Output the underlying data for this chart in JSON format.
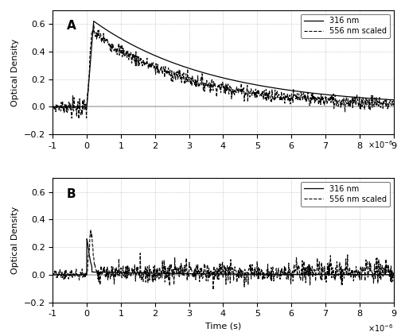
{
  "title": "",
  "xlabel": "Time (s)",
  "ylabel": "Optical Density",
  "xlim": [
    -1e-06,
    9e-06
  ],
  "ylim_A": [
    -0.2,
    0.7
  ],
  "ylim_B": [
    -0.2,
    0.7
  ],
  "yticks_A": [
    -0.2,
    0.0,
    0.2,
    0.4,
    0.6
  ],
  "yticks_B": [
    -0.2,
    0.0,
    0.2,
    0.4,
    0.6
  ],
  "xticks": [
    -1,
    0,
    1,
    2,
    3,
    4,
    5,
    6,
    7,
    8,
    9
  ],
  "legend_316": "316 nm",
  "legend_556": "556 nm scaled",
  "label_A": "A",
  "label_B": "B",
  "solid_color": "#000000",
  "dashed_color": "#000000",
  "background_color": "#ffffff",
  "grid_color": "#aaaaaa"
}
